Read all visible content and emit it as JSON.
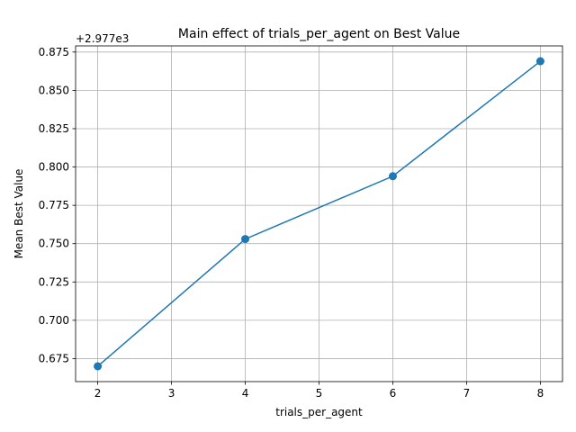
{
  "chart_data": {
    "type": "line",
    "title": "Main effect of trials_per_agent on Best Value",
    "xlabel": "trials_per_agent",
    "ylabel": "Mean Best Value",
    "offset_label": "+2.977e3",
    "x": [
      2,
      4,
      6,
      8
    ],
    "y": [
      0.67,
      0.753,
      0.794,
      0.869
    ],
    "xlim": [
      1.7,
      8.3
    ],
    "ylim": [
      0.66,
      0.879
    ],
    "xticks": [
      2,
      3,
      4,
      5,
      6,
      7,
      8
    ],
    "yticks": [
      "0.675",
      "0.700",
      "0.725",
      "0.750",
      "0.775",
      "0.800",
      "0.825",
      "0.850",
      "0.875"
    ],
    "grid": true,
    "line_color": "#1f77b4"
  }
}
